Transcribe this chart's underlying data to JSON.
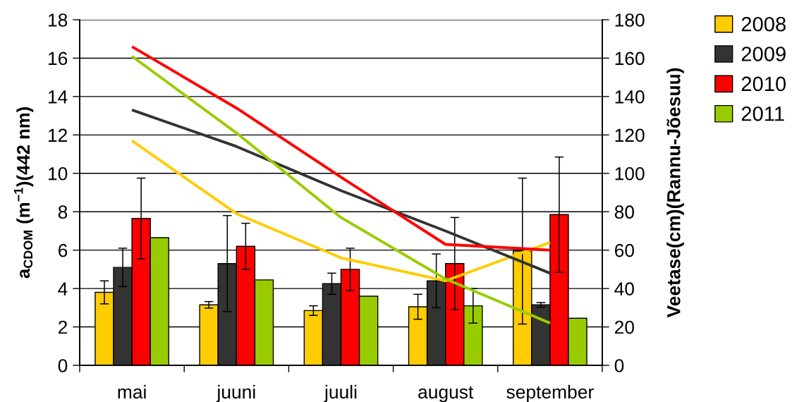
{
  "chart_data": {
    "type": "bar",
    "categories": [
      "mai",
      "juuni",
      "juuli",
      "august",
      "september"
    ],
    "ylabel": "a$_{CDOM}$ (m$^{−1}$)(442 nm)",
    "y2label": "Veetase(cm)(Rannu-Jõesuu)",
    "ylim": [
      0,
      18
    ],
    "yticks": [
      0,
      2,
      4,
      6,
      8,
      10,
      12,
      14,
      16,
      18
    ],
    "y2lim": [
      0,
      180
    ],
    "y2ticks": [
      0,
      20,
      40,
      60,
      80,
      100,
      120,
      140,
      160,
      180
    ],
    "grid": "y",
    "legend": "top right",
    "series": [
      {
        "name": "2008",
        "color": "#ffcc00",
        "values": [
          3.8,
          3.15,
          2.85,
          3.05,
          5.95
        ],
        "errors": [
          0.6,
          0.17,
          0.25,
          0.65,
          3.8
        ]
      },
      {
        "name": "2009",
        "color": "#333333",
        "values": [
          5.1,
          5.3,
          4.25,
          4.4,
          3.15
        ],
        "errors": [
          1.0,
          2.5,
          0.55,
          1.4,
          0.12
        ]
      },
      {
        "name": "2010",
        "color": "#ff0000",
        "values": [
          7.65,
          6.2,
          5.0,
          5.3,
          7.85
        ],
        "errors": [
          2.1,
          1.2,
          1.1,
          2.4,
          3.0
        ]
      },
      {
        "name": "2011",
        "color": "#99cc00",
        "values": [
          6.65,
          4.45,
          3.6,
          3.1,
          2.45
        ],
        "errors": [
          null,
          null,
          null,
          0.9,
          null
        ]
      },
      {
        "type": "line",
        "axis": "y2",
        "color": "#ffcc00",
        "values": [
          117,
          79,
          56,
          44,
          64
        ]
      },
      {
        "type": "line",
        "axis": "y2",
        "color": "#333333",
        "values": [
          133,
          114,
          91,
          70,
          48
        ]
      },
      {
        "type": "line",
        "axis": "y2",
        "color": "#ff0000",
        "values": [
          166,
          134,
          98,
          63,
          60
        ]
      },
      {
        "type": "line",
        "axis": "y2",
        "color": "#99cc00",
        "values": [
          161,
          121,
          77,
          45,
          22
        ]
      }
    ]
  }
}
